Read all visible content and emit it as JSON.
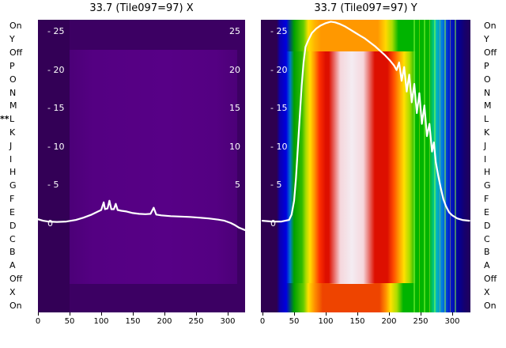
{
  "titles": {
    "left": "33.7 (Tile097=97) X",
    "right": "33.7 (Tile097=97) Y"
  },
  "row_labels": [
    "On",
    "Y",
    "Off",
    "P",
    "O",
    "N",
    "M",
    "L",
    "K",
    "J",
    "I",
    "H",
    "G",
    "F",
    "E",
    "D",
    "C",
    "B",
    "A",
    "Off",
    "X",
    "On"
  ],
  "row_marker": {
    "index": 7,
    "text": "**"
  },
  "x_ticks": [
    0,
    50,
    100,
    150,
    200,
    250,
    300
  ],
  "value_axis": {
    "ticks": [
      {
        "value": 25,
        "left": "- 25",
        "right": "25"
      },
      {
        "value": 20,
        "left": "- 20",
        "right": "20"
      },
      {
        "value": 15,
        "left": "- 15",
        "right": "15"
      },
      {
        "value": 10,
        "left": "- 10",
        "right": "10"
      },
      {
        "value": 5,
        "left": "- 5",
        "right": "5"
      },
      {
        "value": 0,
        "left": "0",
        "right": ""
      }
    ]
  },
  "colors": {
    "trace": "#ffffff",
    "purple_dark": "#330056",
    "purple": "#3c0063",
    "purple_light": "#570086",
    "blue": "#0000e0",
    "green": "#00b400",
    "yellow": "#ffe000",
    "orange": "#ff9000",
    "red": "#dd0f00",
    "white_core": "#f4ecf2",
    "text": "#000000",
    "background": "#ffffff"
  },
  "chart_data": [
    {
      "type": "heatmap",
      "title": "33.7 (Tile097=97) X",
      "xlabel": "",
      "ylabel": "",
      "x_ticks": [
        0,
        50,
        100,
        150,
        200,
        250,
        300
      ],
      "x_range": [
        0,
        327
      ],
      "value_ticks": [
        0,
        5,
        10,
        15,
        20,
        25
      ],
      "value_range": [
        -2,
        28
      ],
      "rows_top_to_bottom": [
        "On",
        "Y",
        "Off",
        "P",
        "O",
        "N",
        "M",
        "L",
        "K",
        "J",
        "I",
        "H",
        "G",
        "F",
        "E",
        "D",
        "C",
        "B",
        "A",
        "Off",
        "X",
        "On"
      ],
      "colormap": "mostly low values: dark purple background with slightly brighter purple inset over rows Off..A and x 50..300",
      "grid": false,
      "legend": "none",
      "line_series": {
        "name": "white-trace",
        "x": [
          0,
          8,
          16,
          30,
          45,
          60,
          72,
          85,
          95,
          100,
          104,
          106,
          110,
          113,
          116,
          120,
          123,
          126,
          132,
          140,
          150,
          160,
          170,
          178,
          183,
          187,
          195,
          210,
          225,
          240,
          255,
          270,
          285,
          295,
          305,
          312,
          318,
          324,
          327
        ],
        "v": [
          0.6,
          0.4,
          0.3,
          0.25,
          0.3,
          0.5,
          0.8,
          1.2,
          1.6,
          1.8,
          2.8,
          1.9,
          2.0,
          3.0,
          1.9,
          1.9,
          2.6,
          1.8,
          1.7,
          1.6,
          1.4,
          1.3,
          1.25,
          1.3,
          2.1,
          1.2,
          1.1,
          1.0,
          0.95,
          0.9,
          0.8,
          0.7,
          0.55,
          0.4,
          0.1,
          -0.2,
          -0.5,
          -0.7,
          -0.8
        ]
      }
    },
    {
      "type": "heatmap",
      "title": "33.7 (Tile097=97) Y",
      "xlabel": "",
      "ylabel": "",
      "x_ticks": [
        0,
        50,
        100,
        150,
        200,
        250,
        300
      ],
      "x_range": [
        0,
        327
      ],
      "value_ticks": [
        0,
        5,
        10,
        15,
        20,
        25
      ],
      "value_range": [
        -2,
        28
      ],
      "rows_top_to_bottom": [
        "On",
        "Y",
        "Off",
        "P",
        "O",
        "N",
        "M",
        "L",
        "K",
        "J",
        "I",
        "H",
        "G",
        "F",
        "E",
        "D",
        "C",
        "B",
        "A",
        "Off",
        "X",
        "On"
      ],
      "colormap": "rainbow low->high: purple, blue, green, yellow, orange, red with saturated white core near x 110..180; vertical green/yellow striping near x 235..300",
      "grid": false,
      "legend": "none",
      "line_series": {
        "name": "white-trace",
        "x": [
          0,
          15,
          30,
          42,
          46,
          50,
          53,
          56,
          59,
          62,
          65,
          68,
          72,
          78,
          85,
          92,
          100,
          108,
          115,
          122,
          130,
          138,
          146,
          154,
          162,
          170,
          178,
          186,
          194,
          202,
          208,
          212,
          216,
          220,
          224,
          228,
          232,
          236,
          240,
          244,
          248,
          252,
          256,
          260,
          264,
          268,
          271,
          274,
          278,
          282,
          286,
          290,
          295,
          300,
          308,
          316,
          327
        ],
        "v": [
          0.4,
          0.3,
          0.3,
          0.5,
          1.2,
          3,
          6,
          10,
          14,
          18,
          21,
          23,
          23.8,
          24.8,
          25.4,
          25.8,
          26.1,
          26.3,
          26.2,
          26.0,
          25.7,
          25.3,
          24.9,
          24.5,
          24.1,
          23.6,
          23.1,
          22.5,
          21.9,
          21.2,
          20.6,
          20.0,
          21.0,
          18.6,
          20.4,
          17.2,
          19.4,
          15.8,
          18.2,
          14.4,
          17.0,
          13.0,
          15.4,
          11.4,
          13.0,
          9.4,
          10.6,
          8.0,
          6.2,
          4.6,
          3.2,
          2.3,
          1.5,
          1.1,
          0.7,
          0.5,
          0.4
        ]
      }
    }
  ]
}
